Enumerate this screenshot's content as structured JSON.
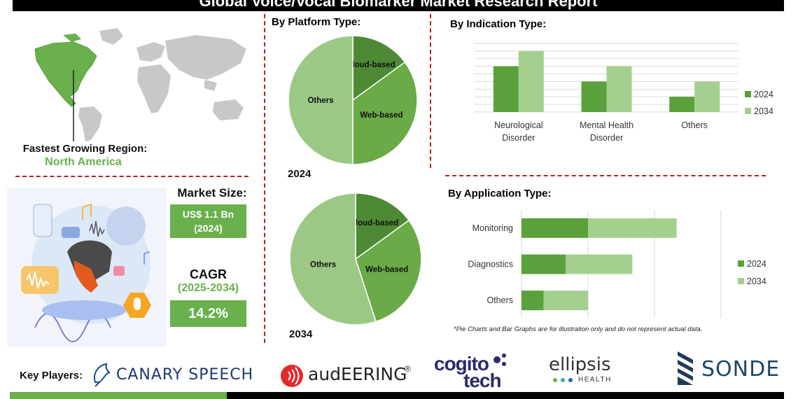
{
  "header": {
    "title": "Global Voice/Vocal Biomarker Market Research Report"
  },
  "region": {
    "label": "Fastest Growing Region:",
    "value": "North America"
  },
  "market_size": {
    "label": "Market Size:",
    "value": "US$ 1.1 Bn",
    "year": "(2024)"
  },
  "cagr": {
    "label": "CAGR",
    "period": "(2025-2034)",
    "value": "14.2%"
  },
  "platform": {
    "title": "By Platform Type:",
    "year_2024": "2024",
    "year_2034": "2034"
  },
  "indication": {
    "title": "By Indication Type:"
  },
  "application": {
    "title": "By Application Type:",
    "note": "*Pie Charts and Bar Graphs are for illustration only and do not represent actual data."
  },
  "key_players": {
    "label": "Key Players:",
    "canary": "CANARY SPEECH",
    "audeering": "audEERING",
    "audeering_reg": "®",
    "cogito_1": "cogito",
    "cogito_2": "tech",
    "ellipsis": "ellipsis",
    "ellipsis_sub": "HEALTH",
    "sonde": "SONDE"
  },
  "colors": {
    "dark_green": "#4e9a35",
    "mid_green": "#6ab04c",
    "light_green": "#9bc985",
    "red_dash": "#b22222"
  },
  "chart_data": [
    {
      "type": "pie",
      "title": "",
      "year_label": "2024",
      "slices": [
        {
          "label": "Cloud-based",
          "value": 15,
          "color": "#4e8a35"
        },
        {
          "label": "Web-based",
          "value": 35,
          "color": "#6aaa47"
        },
        {
          "label": "Others",
          "value": 50,
          "color": "#9bc985"
        }
      ]
    },
    {
      "type": "pie",
      "title": "",
      "year_label": "2034",
      "slices": [
        {
          "label": "Cloud-based",
          "value": 15,
          "color": "#4e8a35"
        },
        {
          "label": "Web-based",
          "value": 30,
          "color": "#6aaa47"
        },
        {
          "label": "Others",
          "value": 55,
          "color": "#9bc985"
        }
      ]
    },
    {
      "type": "bar",
      "orientation": "vertical",
      "categories": [
        [
          "Neurological",
          "Disorder"
        ],
        [
          "Mental Health",
          "Disorder"
        ],
        [
          "Others"
        ]
      ],
      "series": [
        {
          "name": "2024",
          "values": [
            6,
            4,
            2
          ],
          "color": "#5aa03c"
        },
        {
          "name": "2034",
          "values": [
            8,
            6,
            4
          ],
          "color": "#a5cf8f"
        }
      ],
      "ylim": [
        0,
        9
      ],
      "grid": true,
      "legend": "right"
    },
    {
      "type": "bar",
      "orientation": "horizontal-stacked",
      "categories": [
        "Monitoring",
        "Diagnostics",
        "Others"
      ],
      "series": [
        {
          "name": "2024",
          "values": [
            3,
            2,
            1
          ],
          "color": "#5aa03c"
        },
        {
          "name": "2034",
          "values": [
            4,
            3,
            2
          ],
          "color": "#a5cf8f"
        }
      ],
      "xlim": [
        0,
        9
      ],
      "grid": true,
      "legend": "right"
    }
  ]
}
